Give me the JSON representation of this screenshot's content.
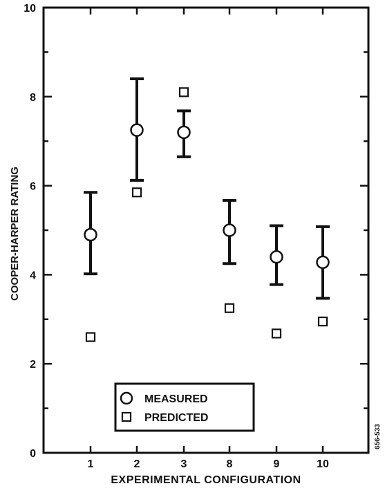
{
  "chart_data": {
    "type": "scatter",
    "xlabel": "EXPERIMENTAL CONFIGURATION",
    "ylabel": "COOPER-HARPER RATING",
    "categories": [
      "1",
      "2",
      "3",
      "8",
      "9",
      "10"
    ],
    "ylim": [
      0,
      10
    ],
    "yticks": [
      0,
      2,
      4,
      6,
      8,
      10
    ],
    "grid": false,
    "legend_position": "bottom-center",
    "side_label": "656-533",
    "series": [
      {
        "name": "MEASURED",
        "marker": "circle",
        "values": [
          4.9,
          7.25,
          7.2,
          5.0,
          4.4,
          4.28
        ],
        "error_low": [
          4.02,
          6.12,
          6.65,
          4.25,
          3.78,
          3.47
        ],
        "error_high": [
          5.85,
          8.4,
          7.68,
          5.67,
          5.1,
          5.08
        ]
      },
      {
        "name": "PREDICTED",
        "marker": "square",
        "values": [
          2.6,
          5.85,
          8.1,
          3.25,
          2.68,
          2.95
        ]
      }
    ]
  }
}
